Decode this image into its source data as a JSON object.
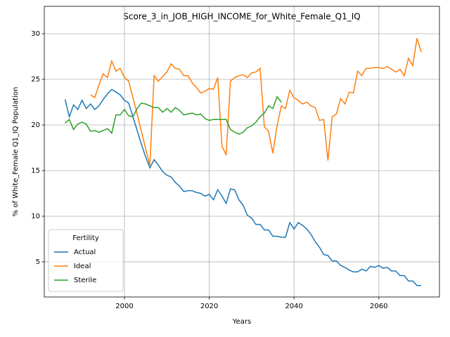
{
  "chart_data": {
    "type": "line",
    "title": "Score_3_in_JOB_HIGH_INCOME_for_White_Female_Q1_IQ",
    "x_label": "Years",
    "y_label": "% of White_Female Q1_IQ Population",
    "legend_title": "Fertility",
    "legend": "lower left",
    "grid": true,
    "x": [
      1986,
      1987,
      1988,
      1989,
      1990,
      1991,
      1992,
      1993,
      1994,
      1995,
      1996,
      1997,
      1998,
      1999,
      2000,
      2001,
      2002,
      2003,
      2004,
      2005,
      2006,
      2007,
      2008,
      2009,
      2010,
      2011,
      2012,
      2013,
      2014,
      2015,
      2016,
      2017,
      2018,
      2019,
      2020,
      2021,
      2022,
      2023,
      2024,
      2025,
      2026,
      2027,
      2028,
      2029,
      2030,
      2031,
      2032,
      2033,
      2034,
      2035,
      2036,
      2037,
      2038,
      2039,
      2040,
      2041,
      2042,
      2043,
      2044,
      2045,
      2046,
      2047,
      2048,
      2049,
      2050,
      2051,
      2052,
      2053,
      2054,
      2055,
      2056,
      2057,
      2058,
      2059,
      2060,
      2061,
      2062,
      2063,
      2064,
      2065,
      2066,
      2067,
      2068,
      2069,
      2070
    ],
    "series": [
      {
        "name": "Actual",
        "color": "#1f77b4",
        "values": [
          22.8,
          20.9,
          22.2,
          21.7,
          22.7,
          21.8,
          22.3,
          21.7,
          22.1,
          22.8,
          23.4,
          23.9,
          23.6,
          23.3,
          22.7,
          22.4,
          20.9,
          19.4,
          17.9,
          16.5,
          15.3,
          16.2,
          15.6,
          14.9,
          14.5,
          14.3,
          13.7,
          13.3,
          12.7,
          12.8,
          12.8,
          12.6,
          12.5,
          12.2,
          12.4,
          11.8,
          12.9,
          12.2,
          11.4,
          13.0,
          12.9,
          11.8,
          11.2,
          10.1,
          9.8,
          9.1,
          9.1,
          8.5,
          8.5,
          7.8,
          7.8,
          7.7,
          7.7,
          9.3,
          8.6,
          9.3,
          9.0,
          8.6,
          8.0,
          7.2,
          6.6,
          5.8,
          5.7,
          5.1,
          5.1,
          4.6,
          4.4,
          4.1,
          3.9,
          3.9,
          4.2,
          4.0,
          4.5,
          4.4,
          4.6,
          4.3,
          4.4,
          4.0,
          4.0,
          3.5,
          3.5,
          2.9,
          2.9,
          2.4,
          2.4
        ]
      },
      {
        "name": "Ideal",
        "color": "#ff7f0e",
        "values": [
          null,
          null,
          null,
          null,
          null,
          null,
          23.3,
          23.0,
          24.4,
          25.6,
          25.2,
          27.0,
          25.9,
          26.2,
          25.2,
          24.8,
          23.0,
          21.2,
          19.3,
          17.4,
          15.6,
          25.4,
          24.8,
          25.3,
          25.8,
          26.7,
          26.2,
          26.1,
          25.4,
          25.4,
          24.6,
          24.1,
          23.5,
          23.7,
          24.0,
          23.9,
          25.2,
          17.7,
          16.7,
          24.8,
          25.2,
          25.4,
          25.5,
          25.2,
          25.7,
          25.8,
          26.2,
          19.8,
          19.3,
          16.9,
          19.9,
          22.1,
          21.8,
          23.8,
          23.0,
          22.7,
          22.3,
          22.5,
          22.1,
          21.9,
          20.5,
          20.6,
          16.1,
          20.9,
          21.2,
          22.9,
          22.3,
          23.6,
          23.5,
          25.9,
          25.4,
          26.2,
          26.2,
          26.3,
          26.3,
          26.2,
          26.4,
          26.1,
          25.8,
          26.1,
          25.4,
          27.3,
          26.5,
          29.5,
          28.0
        ]
      },
      {
        "name": "Sterile",
        "color": "#2ca02c",
        "values": [
          20.2,
          20.6,
          19.5,
          20.1,
          20.3,
          20.1,
          19.3,
          19.4,
          19.2,
          19.4,
          19.6,
          19.1,
          21.1,
          21.1,
          21.7,
          21.0,
          20.9,
          21.8,
          22.4,
          22.3,
          22.1,
          21.9,
          21.9,
          21.4,
          21.8,
          21.4,
          21.9,
          21.6,
          21.1,
          21.2,
          21.3,
          21.1,
          21.2,
          20.7,
          20.5,
          20.6,
          20.6,
          20.6,
          20.6,
          19.5,
          19.2,
          19.0,
          19.2,
          19.7,
          19.9,
          20.3,
          20.9,
          21.3,
          22.1,
          21.8,
          23.1,
          22.5,
          null,
          null,
          null,
          null,
          null,
          null,
          null,
          null,
          null,
          null,
          null,
          null,
          null,
          null,
          null,
          null,
          null,
          null,
          null,
          null,
          null,
          null,
          null,
          null,
          null,
          null,
          null,
          null,
          null,
          null,
          null,
          null,
          null
        ]
      }
    ],
    "xlim": [
      1981.1,
      2074.3
    ],
    "xticks": [
      2000,
      2020,
      2040,
      2060
    ],
    "ylim": [
      1.15,
      33.0
    ],
    "yticks": [
      5,
      10,
      15,
      20,
      25,
      30
    ]
  }
}
